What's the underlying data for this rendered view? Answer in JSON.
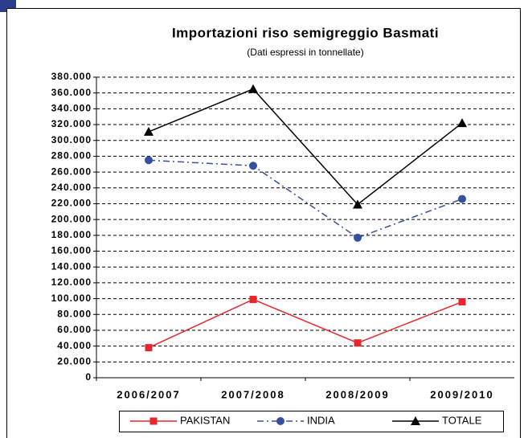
{
  "chart_data": {
    "type": "line",
    "title": "Importazioni riso semigreggio Basmati",
    "subtitle": "(Dati espressi in tonnellate)",
    "categories": [
      "2006/2007",
      "2007/2008",
      "2008/2009",
      "2009/2010"
    ],
    "series": [
      {
        "name": "PAKISTAN",
        "color": "#e8262b",
        "marker": "square",
        "dash": "solid",
        "values": [
          38000,
          99000,
          44000,
          96000
        ]
      },
      {
        "name": "INDIA",
        "color": "#3550a0",
        "marker": "circle",
        "dash": "dashdot",
        "values": [
          275000,
          268000,
          177000,
          226000
        ]
      },
      {
        "name": "TOTALE",
        "color": "#000000",
        "marker": "triangle",
        "dash": "solid",
        "values": [
          311000,
          365000,
          219000,
          322000
        ]
      }
    ],
    "ylim": [
      0,
      380000
    ],
    "yticks": [
      0,
      {
        "value": 20000,
        "label": "20.000"
      },
      {
        "value": 40000,
        "label": "40.000"
      },
      {
        "value": 60000,
        "label": "60.000"
      },
      {
        "value": 80000,
        "label": "80.000"
      },
      {
        "value": 100000,
        "label": "100.000"
      },
      {
        "value": 120000,
        "label": "120.000"
      },
      {
        "value": 140000,
        "label": "140.000"
      },
      {
        "value": 160000,
        "label": "160.000"
      },
      {
        "value": 180000,
        "label": "180.000"
      },
      {
        "value": 200000,
        "label": "200.000"
      },
      {
        "value": 220000,
        "label": "220.000"
      },
      {
        "value": 240000,
        "label": "240.000"
      },
      {
        "value": 260000,
        "label": "260.000"
      },
      {
        "value": 280000,
        "label": "280.000"
      },
      {
        "value": 300000,
        "label": "300.000"
      },
      {
        "value": 320000,
        "label": "320.000"
      },
      {
        "value": 340000,
        "label": "340.000"
      },
      {
        "value": 360000,
        "label": "360.000"
      },
      {
        "value": 380000,
        "label": "380.000"
      }
    ],
    "grid": true,
    "legend": "bottom"
  }
}
